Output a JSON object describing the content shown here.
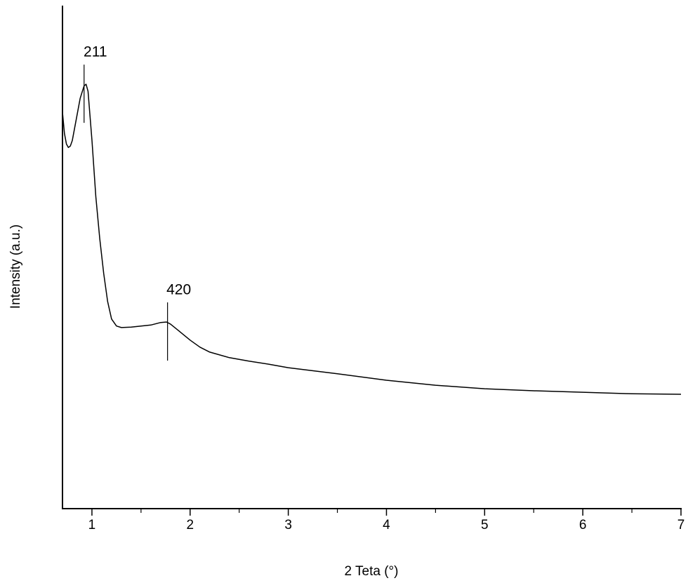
{
  "chart_data": {
    "type": "line",
    "xlabel": "2 Teta (°)",
    "ylabel": "Intensity (a.u.)",
    "x": [
      0.7,
      0.72,
      0.74,
      0.76,
      0.78,
      0.8,
      0.84,
      0.88,
      0.92,
      0.94,
      0.96,
      1.0,
      1.04,
      1.08,
      1.12,
      1.16,
      1.2,
      1.25,
      1.3,
      1.4,
      1.5,
      1.6,
      1.7,
      1.76,
      1.8,
      1.9,
      2.0,
      2.1,
      2.2,
      2.4,
      2.6,
      2.8,
      3.0,
      3.5,
      4.0,
      4.5,
      5.0,
      5.5,
      6.0,
      6.5,
      7.0
    ],
    "series": [
      {
        "color": "#000000",
        "values": [
          79.0,
          74.8,
          72.7,
          72.0,
          72.3,
          73.4,
          77.6,
          81.8,
          84.3,
          84.6,
          83.2,
          73.4,
          62.2,
          53.8,
          46.9,
          41.3,
          37.8,
          36.4,
          36.1,
          36.2,
          36.4,
          36.6,
          37.1,
          37.2,
          36.8,
          35.2,
          33.6,
          32.2,
          31.2,
          30.1,
          29.4,
          28.8,
          28.1,
          26.9,
          25.6,
          24.6,
          23.9,
          23.5,
          23.2,
          22.9,
          22.8
        ]
      }
    ],
    "xlim": [
      0.7,
      7
    ],
    "ylim": [
      0,
      100
    ],
    "xticks": [
      1,
      2,
      3,
      4,
      5,
      6,
      7
    ],
    "xminorticks": [
      1.5,
      2.5,
      3.5,
      4.5,
      5.5,
      6.5
    ],
    "annotations": [
      {
        "text": "211",
        "x": 0.92,
        "y": 84.6
      },
      {
        "text": "420",
        "x": 1.77,
        "y": 37.2
      }
    ]
  }
}
